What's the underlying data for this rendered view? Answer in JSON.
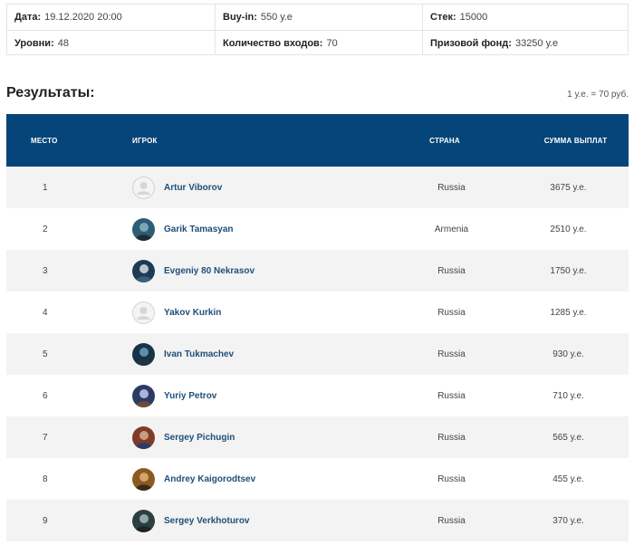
{
  "info": {
    "date_label": "Дата:",
    "date_value": "19.12.2020 20:00",
    "buyin_label": "Buy-in:",
    "buyin_value": "550 у.е",
    "stack_label": "Стек:",
    "stack_value": "15000",
    "levels_label": "Уровни:",
    "levels_value": "48",
    "entries_label": "Количество входов:",
    "entries_value": "70",
    "prize_label": "Призовой фонд:",
    "prize_value": "33250 у.е"
  },
  "results": {
    "title": "Результаты:",
    "rate_note": "1 у.е. = 70 руб.",
    "headers": {
      "place": "МЕСТО",
      "player": "ИГРОК",
      "country": "СТРАНА",
      "prize": "СУММА ВЫПЛАТ"
    },
    "rows": [
      {
        "place": "1",
        "player": "Artur Viborov",
        "country": "Russia",
        "prize": "3675 у.е.",
        "avatar": "default-avatar-icon"
      },
      {
        "place": "2",
        "player": "Garik Tamasyan",
        "country": "Armenia",
        "prize": "2510 у.е.",
        "avatar": "player-photo"
      },
      {
        "place": "3",
        "player": "Evgeniy 80 Nekrasov",
        "country": "Russia",
        "prize": "1750 у.е.",
        "avatar": "player-photo"
      },
      {
        "place": "4",
        "player": "Yakov Kurkin",
        "country": "Russia",
        "prize": "1285 у.е.",
        "avatar": "default-avatar-icon"
      },
      {
        "place": "5",
        "player": "Ivan Tukmachev",
        "country": "Russia",
        "prize": "930 у.е.",
        "avatar": "player-photo"
      },
      {
        "place": "6",
        "player": "Yuriy Petrov",
        "country": "Russia",
        "prize": "710 у.е.",
        "avatar": "player-photo"
      },
      {
        "place": "7",
        "player": "Sergey Pichugin",
        "country": "Russia",
        "prize": "565 у.е.",
        "avatar": "player-photo"
      },
      {
        "place": "8",
        "player": "Andrey Kaigorodtsev",
        "country": "Russia",
        "prize": "455 у.е.",
        "avatar": "player-photo"
      },
      {
        "place": "9",
        "player": "Sergey Verkhoturov",
        "country": "Russia",
        "prize": "370 у.е.",
        "avatar": "player-photo"
      }
    ]
  },
  "colors": {
    "header_bg": "#064579",
    "player_link": "#1f4e79",
    "row_alt": "#f3f3f3"
  }
}
